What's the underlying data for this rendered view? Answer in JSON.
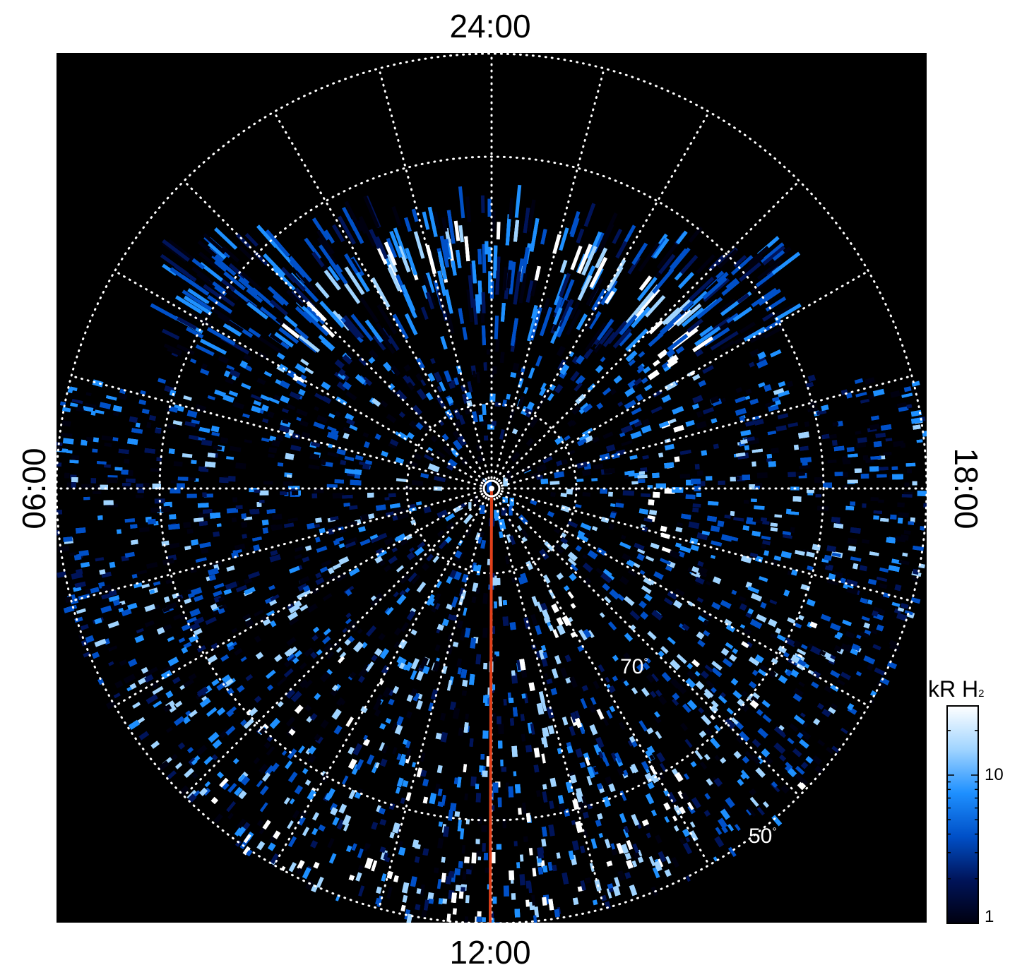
{
  "local_time_labels": {
    "top": "24:00",
    "bottom": "12:00",
    "left": "06:00",
    "right": "18:00"
  },
  "latitude_labels": {
    "inner": "70",
    "outer": "50",
    "degree_symbol": "°"
  },
  "colorbar": {
    "title_main": "kR H",
    "title_sub": "2",
    "ticks": [
      {
        "label": "10",
        "value": 10
      },
      {
        "label": "1",
        "value": 1
      }
    ],
    "colors": [
      "#000010",
      "#00145a",
      "#0050c8",
      "#1e90ff",
      "#a0d4ff",
      "#ffffff"
    ]
  },
  "colors": {
    "background": "#000000",
    "grid": "#ffffff",
    "meridian_line": "#e0401a"
  }
}
